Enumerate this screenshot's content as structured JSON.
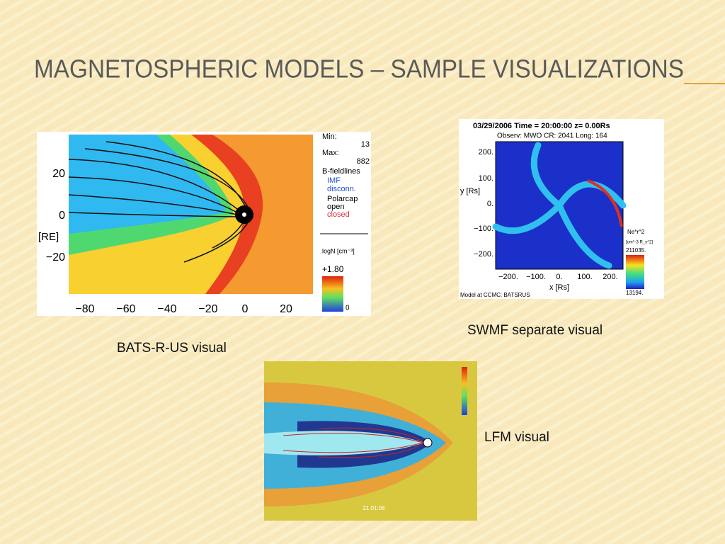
{
  "title": "MAGNETOSPHERIC MODELS – SAMPLE VISUALIZATIONS",
  "captions": [
    "BATS-R-US visual",
    "SWMF separate visual",
    "LFM visual"
  ],
  "bats": {
    "yticks": [
      "20",
      "0",
      "−20"
    ],
    "xticks": [
      "−80",
      "−60",
      "−40",
      "−20",
      "0",
      "20"
    ],
    "ylabel": "[RE]",
    "legend": [
      "Min:",
      "Max:",
      "13",
      "882",
      "B-fieldlines",
      "IMF",
      "disconn.",
      "Polarcap",
      "open",
      "closed"
    ],
    "colorbar_label": "logN [cm⁻³]",
    "colorbar_max": "+1.80",
    "colorbar_min": "0"
  },
  "swmf": {
    "header": "03/29/2006 Time = 20:00:00 z= 0.00Rs",
    "subheader": "Observ: MWO  CR: 2041  Long: 164",
    "yticks": [
      "200.",
      "100.",
      "0.",
      "−100.",
      "−200."
    ],
    "xticks": [
      "−200.",
      "−100.",
      "0.",
      "100.",
      "200."
    ],
    "ylabel": "y [Rs]",
    "xlabel": "x [Rs]",
    "footer": "Model at CCMC: BATSRUS",
    "colorbar_title": "Ne*r^2",
    "colorbar_unit": "[cm^-3 R_s^2]",
    "colorbar_max": "211035.",
    "colorbar_min": "13194."
  },
  "lfm": {
    "timestamp": "21 01:08"
  }
}
